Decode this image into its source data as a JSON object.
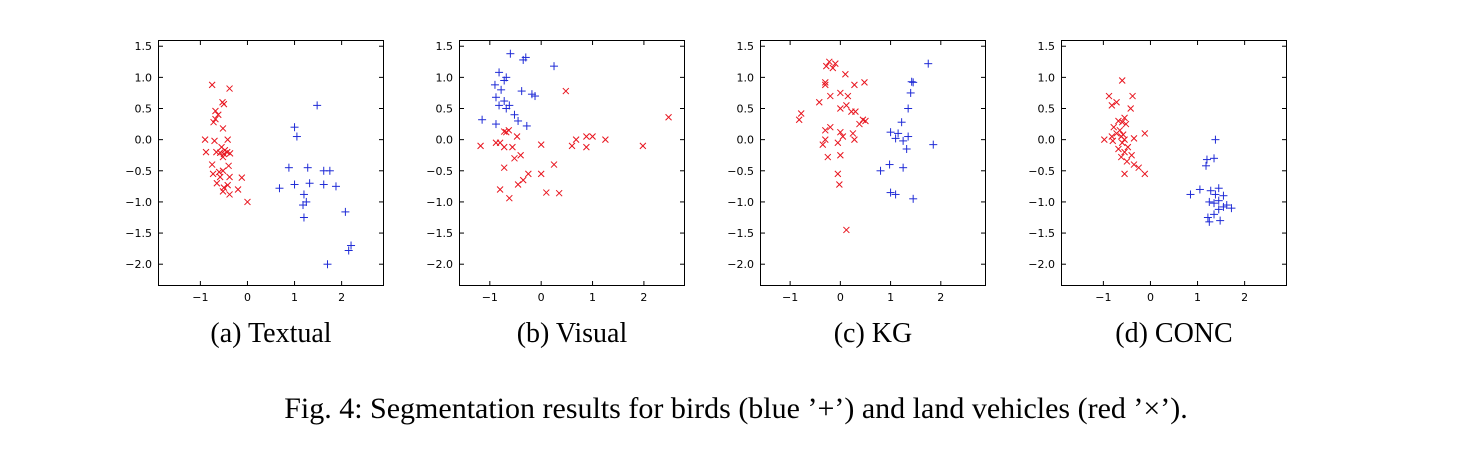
{
  "figure_caption": "Fig. 4: Segmentation results for birds (blue ’+’) and land vehicles (red ’×’).",
  "colors": {
    "birds": "#1f2bd6",
    "vehicles": "#e8141e"
  },
  "chart_data": [
    {
      "type": "scatter",
      "caption": "(a) Textual",
      "xlim": [
        -1.9,
        2.9
      ],
      "ylim": [
        -2.35,
        1.6
      ],
      "xticks": [
        -1,
        0,
        1,
        2
      ],
      "yticks": [
        1.5,
        1.0,
        0.5,
        0.0,
        -0.5,
        -1.0,
        -1.5,
        -2.0
      ],
      "xticklabels": [
        "−1",
        "0",
        "1",
        "2"
      ],
      "yticklabels": [
        "1.5",
        "1.0",
        "0.5",
        "0.0",
        "−0.5",
        "−1.0",
        "−1.5",
        "−2.0"
      ],
      "series": [
        {
          "marker": "x",
          "color": "#e8141e",
          "points": [
            [
              -0.75,
              0.88
            ],
            [
              -0.38,
              0.82
            ],
            [
              -0.53,
              0.6
            ],
            [
              -0.5,
              0.57
            ],
            [
              -0.68,
              0.46
            ],
            [
              -0.62,
              0.4
            ],
            [
              -0.72,
              0.28
            ],
            [
              -0.68,
              0.33
            ],
            [
              -0.52,
              0.18
            ],
            [
              -0.9,
              0.0
            ],
            [
              -0.7,
              -0.02
            ],
            [
              -0.42,
              0.0
            ],
            [
              -0.55,
              -0.12
            ],
            [
              -0.48,
              -0.17
            ],
            [
              -0.58,
              -0.21
            ],
            [
              -0.43,
              -0.2
            ],
            [
              -0.37,
              -0.22
            ],
            [
              -0.5,
              -0.23
            ],
            [
              -0.66,
              -0.2
            ],
            [
              -0.52,
              -0.28
            ],
            [
              -0.88,
              -0.2
            ],
            [
              -0.75,
              -0.4
            ],
            [
              -0.4,
              -0.42
            ],
            [
              -0.73,
              -0.55
            ],
            [
              -0.52,
              -0.5
            ],
            [
              -0.6,
              -0.52
            ],
            [
              -0.38,
              -0.6
            ],
            [
              -0.12,
              -0.61
            ],
            [
              -0.65,
              -0.7
            ],
            [
              -0.42,
              -0.73
            ],
            [
              -0.5,
              -0.77
            ],
            [
              -0.2,
              -0.8
            ],
            [
              -0.52,
              -0.83
            ],
            [
              -0.38,
              -0.88
            ],
            [
              -0.58,
              -0.6
            ],
            [
              0.0,
              -1.0
            ]
          ]
        },
        {
          "marker": "+",
          "color": "#1f2bd6",
          "points": [
            [
              1.48,
              0.55
            ],
            [
              1.0,
              0.2
            ],
            [
              1.05,
              0.05
            ],
            [
              0.88,
              -0.45
            ],
            [
              1.28,
              -0.45
            ],
            [
              1.62,
              -0.5
            ],
            [
              1.75,
              -0.5
            ],
            [
              1.0,
              -0.72
            ],
            [
              1.32,
              -0.7
            ],
            [
              1.62,
              -0.72
            ],
            [
              1.88,
              -0.75
            ],
            [
              0.68,
              -0.78
            ],
            [
              1.2,
              -0.88
            ],
            [
              1.25,
              -1.0
            ],
            [
              1.18,
              -1.05
            ],
            [
              2.08,
              -1.16
            ],
            [
              1.2,
              -1.25
            ],
            [
              2.15,
              -1.78
            ],
            [
              2.2,
              -1.7
            ],
            [
              1.7,
              -2.0
            ]
          ]
        }
      ]
    },
    {
      "type": "scatter",
      "caption": "(b) Visual",
      "xlim": [
        -1.6,
        2.8
      ],
      "ylim": [
        -2.35,
        1.6
      ],
      "xticks": [
        -1,
        0,
        1,
        2
      ],
      "yticks": [
        1.5,
        1.0,
        0.5,
        0.0,
        -0.5,
        -1.0,
        -1.5,
        -2.0
      ],
      "xticklabels": [
        "−1",
        "0",
        "1",
        "2"
      ],
      "yticklabels": [
        "1.5",
        "1.0",
        "0.5",
        "0.0",
        "−0.5",
        "−1.0",
        "−1.5",
        "−2.0"
      ],
      "series": [
        {
          "marker": "x",
          "color": "#e8141e",
          "points": [
            [
              0.48,
              0.78
            ],
            [
              2.48,
              0.36
            ],
            [
              -0.68,
              0.12
            ],
            [
              -0.72,
              0.13
            ],
            [
              -0.63,
              0.15
            ],
            [
              -0.47,
              0.05
            ],
            [
              0.88,
              0.05
            ],
            [
              1.0,
              0.05
            ],
            [
              0.68,
              0.0
            ],
            [
              -1.18,
              -0.1
            ],
            [
              -0.88,
              -0.05
            ],
            [
              -0.8,
              -0.05
            ],
            [
              -0.56,
              -0.12
            ],
            [
              -0.72,
              -0.12
            ],
            [
              1.25,
              0.0
            ],
            [
              0.0,
              -0.08
            ],
            [
              0.88,
              -0.12
            ],
            [
              0.6,
              -0.1
            ],
            [
              1.98,
              -0.1
            ],
            [
              -0.4,
              -0.25
            ],
            [
              -0.52,
              -0.3
            ],
            [
              -0.72,
              -0.45
            ],
            [
              -0.25,
              -0.55
            ],
            [
              0.25,
              -0.4
            ],
            [
              0.0,
              -0.55
            ],
            [
              -0.35,
              -0.65
            ],
            [
              -0.45,
              -0.72
            ],
            [
              -0.8,
              -0.8
            ],
            [
              0.1,
              -0.85
            ],
            [
              0.35,
              -0.86
            ],
            [
              -0.62,
              -0.94
            ]
          ]
        },
        {
          "marker": "+",
          "color": "#1f2bd6",
          "points": [
            [
              -0.6,
              1.38
            ],
            [
              -0.3,
              1.32
            ],
            [
              -0.35,
              1.28
            ],
            [
              0.25,
              1.18
            ],
            [
              -0.82,
              1.08
            ],
            [
              -0.68,
              1.0
            ],
            [
              -0.72,
              0.95
            ],
            [
              -0.9,
              0.88
            ],
            [
              -0.38,
              0.78
            ],
            [
              -0.78,
              0.8
            ],
            [
              -0.18,
              0.73
            ],
            [
              -0.12,
              0.7
            ],
            [
              -0.88,
              0.68
            ],
            [
              -0.72,
              0.62
            ],
            [
              -0.82,
              0.55
            ],
            [
              -0.62,
              0.55
            ],
            [
              -0.68,
              0.5
            ],
            [
              -0.52,
              0.4
            ],
            [
              -1.15,
              0.32
            ],
            [
              -0.45,
              0.3
            ],
            [
              -0.88,
              0.25
            ],
            [
              -0.28,
              0.22
            ]
          ]
        }
      ]
    },
    {
      "type": "scatter",
      "caption": "(c) KG",
      "xlim": [
        -1.6,
        2.9
      ],
      "ylim": [
        -2.35,
        1.6
      ],
      "xticks": [
        -1,
        0,
        1,
        2
      ],
      "yticks": [
        1.5,
        1.0,
        0.5,
        0.0,
        -0.5,
        -1.0,
        -1.5,
        -2.0
      ],
      "xticklabels": [
        "−1",
        "0",
        "1",
        "2"
      ],
      "yticklabels": [
        "1.5",
        "1.0",
        "0.5",
        "0.0",
        "−0.5",
        "−1.0",
        "−1.5",
        "−2.0"
      ],
      "series": [
        {
          "marker": "x",
          "color": "#e8141e",
          "points": [
            [
              -0.22,
              1.25
            ],
            [
              -0.1,
              1.22
            ],
            [
              -0.15,
              1.15
            ],
            [
              -0.28,
              1.18
            ],
            [
              0.1,
              1.05
            ],
            [
              -0.3,
              0.92
            ],
            [
              -0.3,
              0.88
            ],
            [
              0.28,
              0.88
            ],
            [
              0.48,
              0.92
            ],
            [
              0.0,
              0.75
            ],
            [
              0.15,
              0.7
            ],
            [
              -0.2,
              0.7
            ],
            [
              0.12,
              0.55
            ],
            [
              -0.42,
              0.6
            ],
            [
              0.22,
              0.45
            ],
            [
              0.3,
              0.45
            ],
            [
              0.0,
              0.5
            ],
            [
              -0.78,
              0.42
            ],
            [
              -0.82,
              0.32
            ],
            [
              0.45,
              0.32
            ],
            [
              0.5,
              0.3
            ],
            [
              0.38,
              0.25
            ],
            [
              -0.2,
              0.2
            ],
            [
              -0.3,
              0.15
            ],
            [
              0.0,
              0.12
            ],
            [
              0.25,
              0.1
            ],
            [
              0.05,
              0.05
            ],
            [
              -0.3,
              0.0
            ],
            [
              0.28,
              0.0
            ],
            [
              -0.05,
              -0.05
            ],
            [
              -0.35,
              -0.08
            ],
            [
              0.0,
              -0.25
            ],
            [
              -0.25,
              -0.28
            ],
            [
              -0.05,
              -0.55
            ],
            [
              -0.02,
              -0.72
            ],
            [
              0.12,
              -1.45
            ]
          ]
        },
        {
          "marker": "+",
          "color": "#1f2bd6",
          "points": [
            [
              1.75,
              1.22
            ],
            [
              1.42,
              0.93
            ],
            [
              1.45,
              0.92
            ],
            [
              1.4,
              0.75
            ],
            [
              1.35,
              0.5
            ],
            [
              1.22,
              0.28
            ],
            [
              1.0,
              0.12
            ],
            [
              1.15,
              0.1
            ],
            [
              1.35,
              0.05
            ],
            [
              1.1,
              0.02
            ],
            [
              1.25,
              -0.02
            ],
            [
              1.85,
              -0.08
            ],
            [
              1.32,
              -0.15
            ],
            [
              0.98,
              -0.4
            ],
            [
              1.25,
              -0.45
            ],
            [
              0.8,
              -0.5
            ],
            [
              1.0,
              -0.85
            ],
            [
              1.1,
              -0.88
            ],
            [
              1.45,
              -0.95
            ]
          ]
        }
      ]
    },
    {
      "type": "scatter",
      "caption": "(d) CONC",
      "xlim": [
        -1.9,
        2.9
      ],
      "ylim": [
        -2.35,
        1.6
      ],
      "xticks": [
        -1,
        0,
        1,
        2
      ],
      "yticks": [
        1.5,
        1.0,
        0.5,
        0.0,
        -0.5,
        -1.0,
        -1.5,
        -2.0
      ],
      "xticklabels": [
        "−1",
        "0",
        "1",
        "2"
      ],
      "yticklabels": [
        "1.5",
        "1.0",
        "0.5",
        "0.0",
        "−0.5",
        "−1.0",
        "−1.5",
        "−2.0"
      ],
      "series": [
        {
          "marker": "x",
          "color": "#e8141e",
          "points": [
            [
              -0.6,
              0.95
            ],
            [
              -0.38,
              0.7
            ],
            [
              -0.88,
              0.7
            ],
            [
              -0.72,
              0.6
            ],
            [
              -0.82,
              0.55
            ],
            [
              -0.42,
              0.5
            ],
            [
              -0.55,
              0.35
            ],
            [
              -0.68,
              0.3
            ],
            [
              -0.6,
              0.28
            ],
            [
              -0.52,
              0.25
            ],
            [
              -0.78,
              0.2
            ],
            [
              -0.65,
              0.15
            ],
            [
              -0.72,
              0.1
            ],
            [
              -0.58,
              0.08
            ],
            [
              -0.82,
              0.05
            ],
            [
              -0.62,
              0.05
            ],
            [
              -0.12,
              0.1
            ],
            [
              -0.98,
              0.0
            ],
            [
              -0.55,
              0.0
            ],
            [
              -0.35,
              0.02
            ],
            [
              -0.8,
              -0.02
            ],
            [
              -0.6,
              -0.05
            ],
            [
              -0.48,
              -0.12
            ],
            [
              -0.68,
              -0.15
            ],
            [
              -0.55,
              -0.2
            ],
            [
              -0.4,
              -0.25
            ],
            [
              -0.62,
              -0.28
            ],
            [
              -0.5,
              -0.35
            ],
            [
              -0.35,
              -0.4
            ],
            [
              -0.25,
              -0.45
            ],
            [
              -0.12,
              -0.55
            ],
            [
              -0.55,
              -0.55
            ]
          ]
        },
        {
          "marker": "+",
          "color": "#1f2bd6",
          "points": [
            [
              1.38,
              0.0
            ],
            [
              1.35,
              -0.3
            ],
            [
              1.2,
              -0.32
            ],
            [
              1.18,
              -0.42
            ],
            [
              1.05,
              -0.8
            ],
            [
              1.28,
              -0.82
            ],
            [
              1.45,
              -0.78
            ],
            [
              1.38,
              -0.88
            ],
            [
              0.85,
              -0.88
            ],
            [
              1.55,
              -0.9
            ],
            [
              1.45,
              -0.98
            ],
            [
              1.25,
              -1.0
            ],
            [
              1.35,
              -1.02
            ],
            [
              1.62,
              -1.05
            ],
            [
              1.55,
              -1.08
            ],
            [
              1.72,
              -1.1
            ],
            [
              1.45,
              -1.12
            ],
            [
              1.35,
              -1.2
            ],
            [
              1.22,
              -1.25
            ],
            [
              1.48,
              -1.3
            ],
            [
              1.25,
              -1.32
            ]
          ]
        }
      ]
    }
  ]
}
